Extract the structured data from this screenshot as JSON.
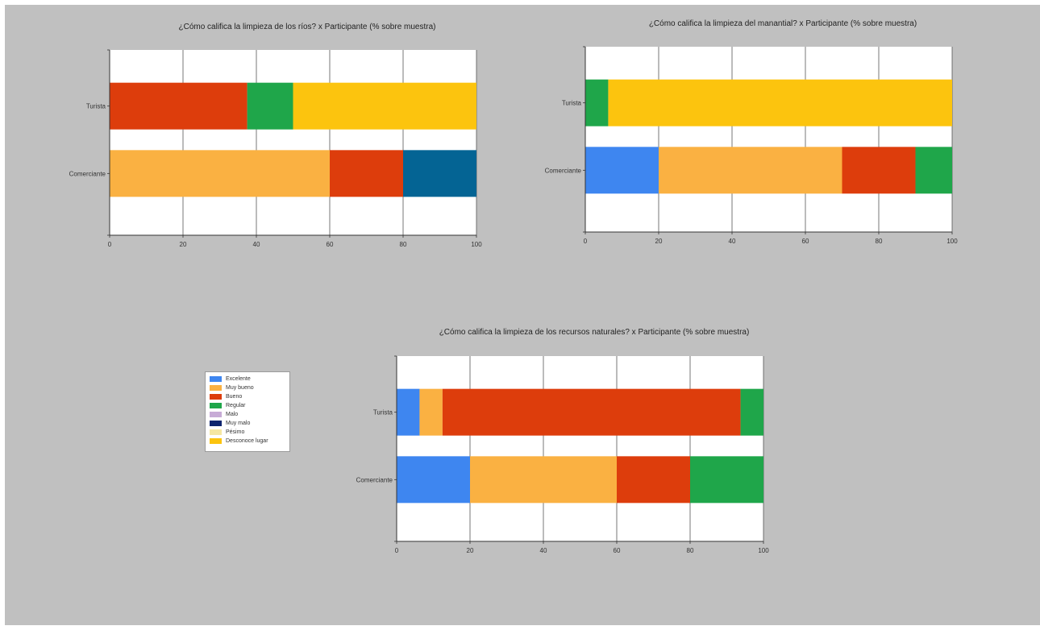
{
  "legend": {
    "items": [
      {
        "label": "Excelente",
        "color": "#3e86f0"
      },
      {
        "label": "Muy bueno",
        "color": "#fab142"
      },
      {
        "label": "Bueno",
        "color": "#dd3d0c"
      },
      {
        "label": "Regular",
        "color": "#1fa64a"
      },
      {
        "label": "Malo",
        "color": "#c7abd6"
      },
      {
        "label": "Muy malo",
        "color": "#0d246e"
      },
      {
        "label": "Pésimo",
        "color": "#f5e7a2"
      },
      {
        "label": "Desconoce lugar",
        "color": "#fcc40e"
      }
    ]
  },
  "chart_data": [
    {
      "type": "bar",
      "orientation": "horizontal",
      "stacked": true,
      "title": "¿Cómo califica la limpieza de los ríos? x Participante (% sobre muestra)",
      "categories": [
        "Turista",
        "Comerciante"
      ],
      "xlim": [
        0,
        100
      ],
      "xticks": [
        "0",
        "20",
        "40",
        "60",
        "80",
        "100"
      ],
      "grid": true,
      "series": [
        {
          "name": "Muy bueno",
          "color": "#fab142",
          "values": [
            0,
            60
          ]
        },
        {
          "name": "Bueno",
          "color": "#dd3d0c",
          "values": [
            37.5,
            20
          ]
        },
        {
          "name": "Regular",
          "color": "#1fa64a",
          "values": [
            12.5,
            0
          ]
        },
        {
          "name": "Desconoce lugar",
          "color": "#fcc40e",
          "values": [
            50,
            0
          ]
        },
        {
          "color": "#046494",
          "values": [
            0,
            20
          ]
        }
      ]
    },
    {
      "type": "bar",
      "orientation": "horizontal",
      "stacked": true,
      "title": "¿Cómo califica la limpieza del manantial? x Participante (% sobre muestra)",
      "categories": [
        "Turista",
        "Comerciante"
      ],
      "xlim": [
        0,
        100
      ],
      "xticks": [
        "0",
        "20",
        "40",
        "60",
        "80",
        "100"
      ],
      "grid": true,
      "series": [
        {
          "name": "Excelente",
          "color": "#3e86f0",
          "values": [
            0,
            20
          ]
        },
        {
          "name": "Muy bueno",
          "color": "#fab142",
          "values": [
            0,
            50
          ]
        },
        {
          "name": "Bueno",
          "color": "#dd3d0c",
          "values": [
            0,
            20
          ]
        },
        {
          "name": "Regular",
          "color": "#1fa64a",
          "values": [
            6.25,
            10
          ]
        },
        {
          "name": "Desconoce lugar",
          "color": "#fcc40e",
          "values": [
            93.75,
            0
          ]
        }
      ]
    },
    {
      "type": "bar",
      "orientation": "horizontal",
      "stacked": true,
      "title": "¿Cómo califica la limpieza de los recursos naturales? x Participante (% sobre muestra)",
      "categories": [
        "Turista",
        "Comerciante"
      ],
      "xlim": [
        0,
        100
      ],
      "xticks": [
        "0",
        "20",
        "40",
        "60",
        "80",
        "100"
      ],
      "grid": true,
      "series": [
        {
          "name": "Excelente",
          "color": "#3e86f0",
          "values": [
            6.25,
            20
          ]
        },
        {
          "name": "Muy bueno",
          "color": "#fab142",
          "values": [
            6.25,
            40
          ]
        },
        {
          "name": "Bueno",
          "color": "#dd3d0c",
          "values": [
            81.25,
            20
          ]
        },
        {
          "name": "Regular",
          "color": "#1fa64a",
          "values": [
            6.25,
            20
          ]
        }
      ]
    }
  ]
}
